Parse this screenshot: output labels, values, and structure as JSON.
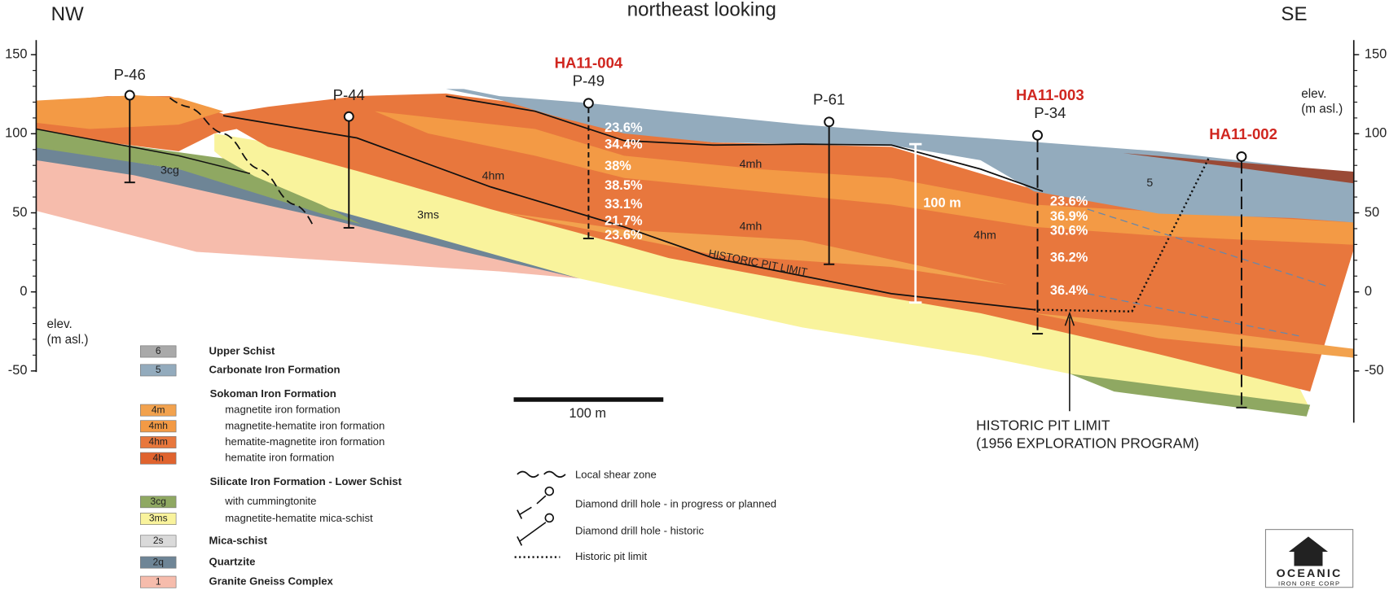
{
  "header": {
    "left": "NW",
    "title": "northeast looking",
    "right": "SE"
  },
  "axis": {
    "label": [
      "elev.",
      "(m asl.)"
    ],
    "ticks": [
      150,
      100,
      50,
      0,
      -50
    ]
  },
  "drill_holes": [
    {
      "label": "P-46"
    },
    {
      "label": "P-44"
    },
    {
      "program": "HA11-004",
      "label": "P-49",
      "assays": [
        "23.6%",
        "34.4%",
        "38%",
        "38.5%",
        "33.1%",
        "21.7%",
        "23.6%"
      ]
    },
    {
      "label": "P-61"
    },
    {
      "program": "HA11-003",
      "label": "P-34",
      "assays": [
        "23.6%",
        "36.9%",
        "30.6%",
        "36.2%",
        "36.4%"
      ]
    },
    {
      "program": "HA11-002"
    }
  ],
  "units": [
    "3cg",
    "3ms",
    "4hm",
    "4mh",
    "4mh",
    "4hm",
    "5"
  ],
  "annotations": {
    "pit_line": "HISTORIC  PIT  LIMIT",
    "thickness": "100 m",
    "scale": "100 m",
    "pit_note": [
      "HISTORIC PIT LIMIT",
      "(1956 EXPLORATION PROGRAM)"
    ]
  },
  "legend": {
    "rows": [
      {
        "code": "6",
        "label": "Upper Schist",
        "color": "#a9a9a9"
      },
      {
        "code": "5",
        "label": "Carbonate Iron Formation",
        "color": "#93abbd"
      },
      {
        "heading": "Sokoman Iron Formation"
      },
      {
        "code": "4m",
        "label": "magnetite iron formation",
        "color": "#f2a24e"
      },
      {
        "code": "4mh",
        "label": "magnetite-hematite iron formation",
        "color": "#f39a45"
      },
      {
        "code": "4hm",
        "label": "hematite-magnetite iron formation",
        "color": "#e8773d"
      },
      {
        "code": "4h",
        "label": "hematite iron formation",
        "color": "#e0632e"
      },
      {
        "heading": "Silicate Iron Formation - Lower Schist"
      },
      {
        "code": "3cg",
        "label": "with cummingtonite",
        "color": "#8fa862"
      },
      {
        "code": "3ms",
        "label": "magnetite-hematite mica-schist",
        "color": "#f9f39c"
      },
      {
        "code": "2s",
        "label": "Mica-schist",
        "color": "#dadada"
      },
      {
        "code": "2q",
        "label": "Quartzite",
        "color": "#6e8596"
      },
      {
        "code": "1",
        "label": "Granite Gneiss Complex",
        "color": "#f6bcac"
      }
    ],
    "symbols": [
      "Local shear zone",
      "Diamond drill hole - in progress or planned",
      "Diamond drill hole - historic",
      "Historic pit limit"
    ]
  },
  "logo": {
    "name": "OCEANIC",
    "sub": "IRON ORE CORP"
  }
}
